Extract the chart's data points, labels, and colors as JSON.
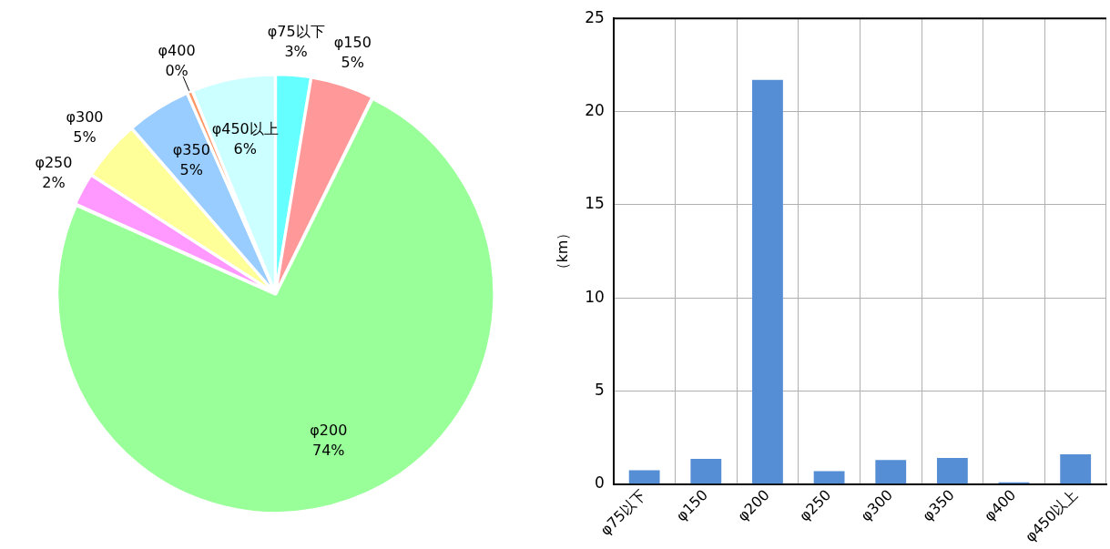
{
  "chart_data": [
    {
      "type": "pie",
      "categories": [
        "φ75以下",
        "φ150",
        "φ200",
        "φ250",
        "φ300",
        "φ350",
        "φ400",
        "φ450以上"
      ],
      "values": [
        2.6,
        4.7,
        74.4,
        2.4,
        4.5,
        4.8,
        0.4,
        6.2
      ],
      "value_labels": [
        "3%",
        "5%",
        "74%",
        "2%",
        "5%",
        "5%",
        "0%",
        "6%"
      ],
      "colors": [
        "#66ffff",
        "#ff9999",
        "#99ff99",
        "#ff99ff",
        "#ffff99",
        "#99ccff",
        "#ff9966",
        "#ccffff"
      ],
      "legend": false
    },
    {
      "type": "bar",
      "categories": [
        "φ75以下",
        "φ150",
        "φ200",
        "φ250",
        "φ300",
        "φ350",
        "φ400",
        "φ450以上"
      ],
      "values": [
        0.75,
        1.35,
        21.7,
        0.7,
        1.3,
        1.4,
        0.1,
        1.6
      ],
      "color": "#558ed5",
      "ylabel": "（km）",
      "ylim": [
        0,
        25
      ],
      "yticks": [
        0,
        5,
        10,
        15,
        20,
        25
      ],
      "grid": true,
      "legend": false
    }
  ]
}
